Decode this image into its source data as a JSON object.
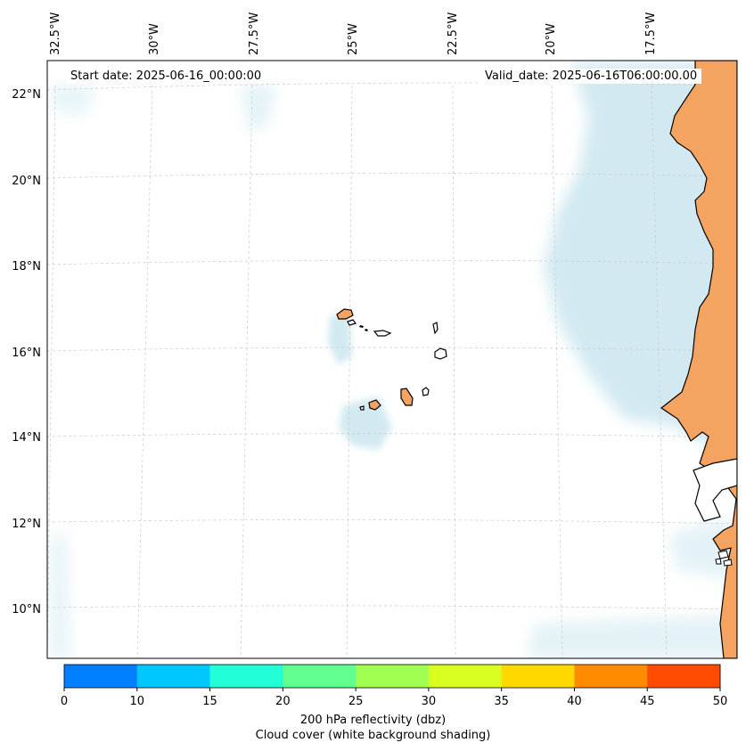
{
  "map": {
    "start_date": "Start date: 2025-06-16_00:00:00",
    "valid_date": "Valid_date: 2025-06-16T06:00:00.00",
    "lon_labels": [
      "32.5°W",
      "30°W",
      "27.5°W",
      "25°W",
      "22.5°W",
      "20°W",
      "17.5°W"
    ],
    "lat_labels": [
      "22°N",
      "20°N",
      "18°N",
      "16°N",
      "14°N",
      "12°N",
      "10°N"
    ],
    "colors": {
      "land": "#f4a460",
      "cloud": "#add8e6",
      "coast": "#000000",
      "grid": "#c8c8c8"
    }
  },
  "colorbar": {
    "ticks": [
      "0",
      "10",
      "15",
      "20",
      "25",
      "30",
      "35",
      "40",
      "45",
      "50"
    ],
    "colors": [
      "#0080ff",
      "#00c8ff",
      "#20ffd8",
      "#60ff90",
      "#a0ff50",
      "#d8ff20",
      "#ffd800",
      "#ff8c00",
      "#ff4c00"
    ],
    "label_line1": "200 hPa reflectivity (dbz)",
    "label_line2": "Cloud cover (white background shading)"
  }
}
